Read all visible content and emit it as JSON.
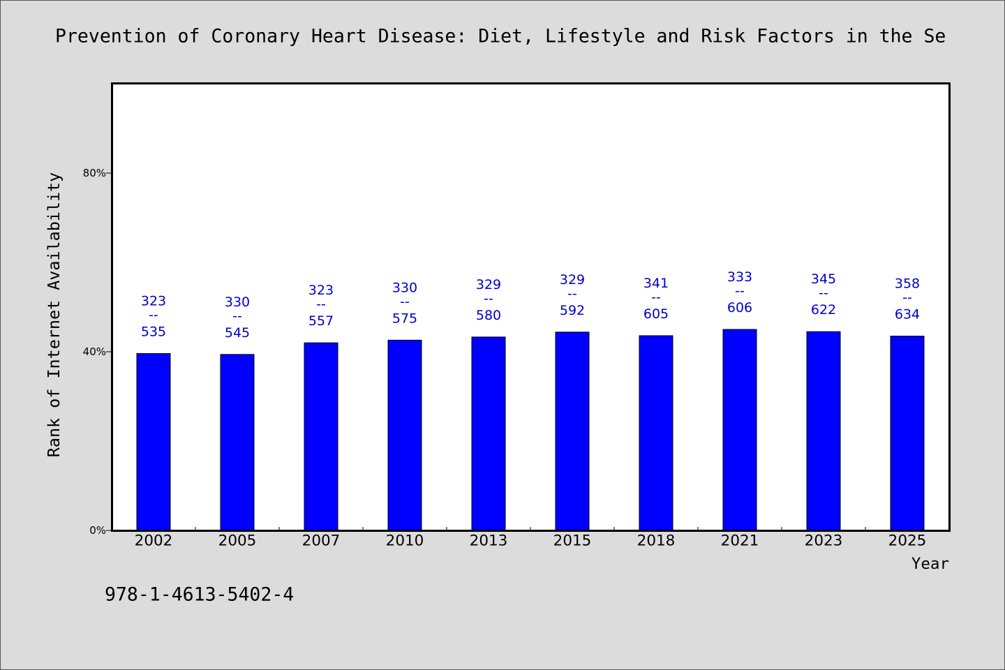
{
  "chart_data": {
    "type": "bar",
    "title": "Prevention of Coronary Heart Disease: Diet, Lifestyle and Risk Factors in the Se",
    "xlabel": "Year",
    "ylabel": "Rank of Internet Availability",
    "categories": [
      "2002",
      "2005",
      "2007",
      "2010",
      "2013",
      "2015",
      "2018",
      "2021",
      "2023",
      "2025"
    ],
    "values": [
      39.6,
      39.4,
      42.0,
      42.6,
      43.3,
      44.4,
      43.6,
      45.0,
      44.5,
      43.5
    ],
    "ylim": [
      0,
      100
    ],
    "yticks": [
      0,
      40,
      80
    ],
    "ytick_labels": [
      "0%",
      "40%",
      "80%"
    ],
    "label_separator": "--",
    "data_labels": [
      {
        "upper": "323",
        "lower": "535"
      },
      {
        "upper": "330",
        "lower": "545"
      },
      {
        "upper": "323",
        "lower": "557"
      },
      {
        "upper": "330",
        "lower": "575"
      },
      {
        "upper": "329",
        "lower": "580"
      },
      {
        "upper": "329",
        "lower": "592"
      },
      {
        "upper": "341",
        "lower": "605"
      },
      {
        "upper": "333",
        "lower": "606"
      },
      {
        "upper": "345",
        "lower": "622"
      },
      {
        "upper": "358",
        "lower": "634"
      }
    ],
    "bar_color": "#0000ff",
    "label_color": "#0000cd",
    "grid": false,
    "legend": "none"
  },
  "footer": {
    "isbn": "978-1-4613-5402-4"
  },
  "colors": {
    "background": "#dcdcdc",
    "plot_background": "#ffffff"
  }
}
